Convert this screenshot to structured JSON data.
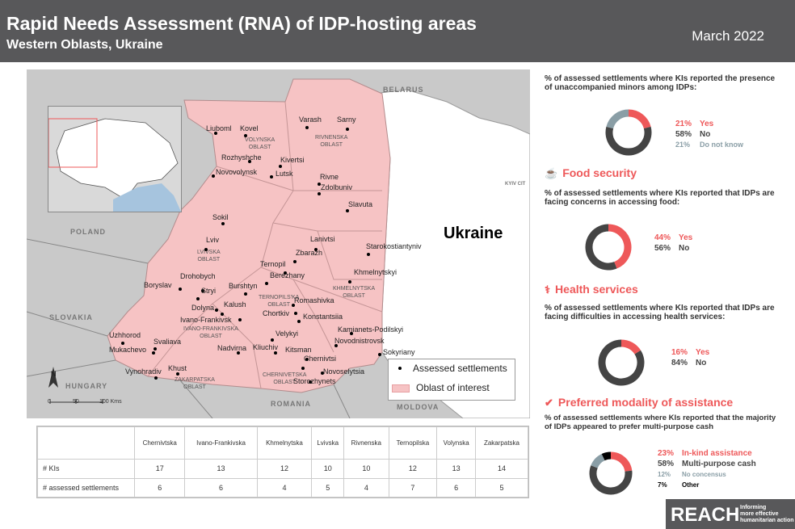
{
  "header": {
    "title": "Rapid Needs Assessment (RNA) of IDP-hosting areas",
    "subtitle": "Western Oblasts, Ukraine",
    "date": "March 2022"
  },
  "map": {
    "country_labels": {
      "belarus": "BELARUS",
      "poland": "POLAND",
      "slovakia": "SLOVAKIA",
      "hungary": "HUNGARY",
      "romania": "ROMANIA",
      "moldova": "MOLDOVA",
      "kyiv": "KYIV CIT"
    },
    "ukraine_label": "Ukraine",
    "settlements": [
      {
        "name": "Liuboml"
      },
      {
        "name": "Kovel"
      },
      {
        "name": "Varash"
      },
      {
        "name": "Sarny"
      },
      {
        "name": "Rozhyshche"
      },
      {
        "name": "Kivertsi"
      },
      {
        "name": "Novovolynsk"
      },
      {
        "name": "Lutsk"
      },
      {
        "name": "Rivne"
      },
      {
        "name": "Zdolbuniv"
      },
      {
        "name": "Slavuta"
      },
      {
        "name": "Sokil"
      },
      {
        "name": "Lviv"
      },
      {
        "name": "Lanivtsi"
      },
      {
        "name": "Starokostiantyniv"
      },
      {
        "name": "Zbarazh"
      },
      {
        "name": "Ternopil"
      },
      {
        "name": "Khmelnytskyi"
      },
      {
        "name": "Berezhany"
      },
      {
        "name": "Drohobych"
      },
      {
        "name": "Boryslav"
      },
      {
        "name": "Burshtyn"
      },
      {
        "name": "Stryi"
      },
      {
        "name": "Romashivka"
      },
      {
        "name": "Kalush"
      },
      {
        "name": "Dolyna"
      },
      {
        "name": "Chortkiv"
      },
      {
        "name": "Konstantsiia"
      },
      {
        "name": "Ivano-Frankivsk"
      },
      {
        "name": "Kamianets-Podilskyi"
      },
      {
        "name": "Velykyi"
      },
      {
        "name": "Novodnistrovsk"
      },
      {
        "name": "Uzhhorod"
      },
      {
        "name": "Svaliava"
      },
      {
        "name": "Nadvirna"
      },
      {
        "name": "Kliuchiv"
      },
      {
        "name": "Mukachevo"
      },
      {
        "name": "Kitsman"
      },
      {
        "name": "Sokyriany"
      },
      {
        "name": "Chernivtsi"
      },
      {
        "name": "Vynohradiv"
      },
      {
        "name": "Khust"
      },
      {
        "name": "Novoselytsia"
      },
      {
        "name": "Storozhynets"
      }
    ],
    "oblast_labels": {
      "volynska": [
        "VOLYNSKA",
        "OBLAST"
      ],
      "rivnenska": [
        "RIVNENSKA",
        "OBLAST"
      ],
      "lvivska": [
        "LVIVSKA",
        "OBLAST"
      ],
      "ternopilska": [
        "TERNOPILS'KA",
        "OBLAST"
      ],
      "khmelnytska": [
        "KHMELNYTSKA",
        "OBLAST"
      ],
      "ivanofrankivska": [
        "IVANO-FRANKIVSKA",
        "OBLAST"
      ],
      "zakarpatska": [
        "ZAKARPATSKA",
        "OBLAST"
      ],
      "chernivetska": [
        "CHERNIVETSKA",
        "OBLAST"
      ]
    },
    "legend": {
      "settlements": "Assessed settlements",
      "oblast": "Oblast of interest"
    },
    "scale": {
      "ticks": [
        "0",
        "50",
        "100 Kms"
      ],
      "north": "N"
    },
    "colors": {
      "oblast_fill": "#f6c3c4",
      "background": "#c9c9c9",
      "water": "#a6c4de"
    }
  },
  "table": {
    "columns": [
      "Chernivtska",
      "Ivano-Frankivska",
      "Khmelnytska",
      "Lvivska",
      "Rivnenska",
      "Ternopilska",
      "Volynska",
      "Zakarpatska"
    ],
    "rows": [
      {
        "label": "# KIs",
        "values": [
          "17",
          "13",
          "12",
          "10",
          "10",
          "12",
          "13",
          "14"
        ]
      },
      {
        "label": "# assessed settlements",
        "values": [
          "6",
          "6",
          "4",
          "5",
          "4",
          "7",
          "6",
          "5"
        ]
      }
    ]
  },
  "panels": {
    "minors": {
      "question": "% of assessed settlements where KIs reported the presence of unaccompanied minors among IDPs:",
      "items": [
        {
          "pct": "21%",
          "label": "Yes",
          "value": 21,
          "color": "#ee5859"
        },
        {
          "pct": "58%",
          "label": "No",
          "value": 58,
          "color": "#444444"
        },
        {
          "pct": "21%",
          "label": "Do not know",
          "value": 21,
          "color": "#8a9ea6"
        }
      ]
    },
    "food": {
      "title": "Food security",
      "question": "% of assessed settlements where KIs reported that IDPs are facing concerns in accessing food:",
      "items": [
        {
          "pct": "44%",
          "label": "Yes",
          "value": 44,
          "color": "#ee5859"
        },
        {
          "pct": "56%",
          "label": "No",
          "value": 56,
          "color": "#444444"
        }
      ]
    },
    "health": {
      "title": "Health services",
      "question": "% of assessed settlements where KIs reported that IDPs are facing difficulties in accessing health services:",
      "items": [
        {
          "pct": "16%",
          "label": "Yes",
          "value": 16,
          "color": "#ee5859"
        },
        {
          "pct": "84%",
          "label": "No",
          "value": 84,
          "color": "#444444"
        }
      ]
    },
    "modality": {
      "title": "Preferred modality of assistance",
      "question": "% of assessed settlements where KIs reported that the majority of IDPs appeared to prefer multi-purpose cash",
      "items": [
        {
          "pct": "23%",
          "label": "In-kind assistance",
          "value": 23,
          "color": "#ee5859"
        },
        {
          "pct": "58%",
          "label": "Multi-purpose cash",
          "value": 58,
          "color": "#444444"
        },
        {
          "pct": "12%",
          "label": "No concensus",
          "value": 12,
          "color": "#8a9ea6"
        },
        {
          "pct": "7%",
          "label": "Other",
          "value": 7,
          "color": "#000000"
        }
      ]
    }
  },
  "footer": {
    "logo": "REACH",
    "tagline": [
      "Informing",
      "more effective",
      "humanitarian action"
    ]
  }
}
